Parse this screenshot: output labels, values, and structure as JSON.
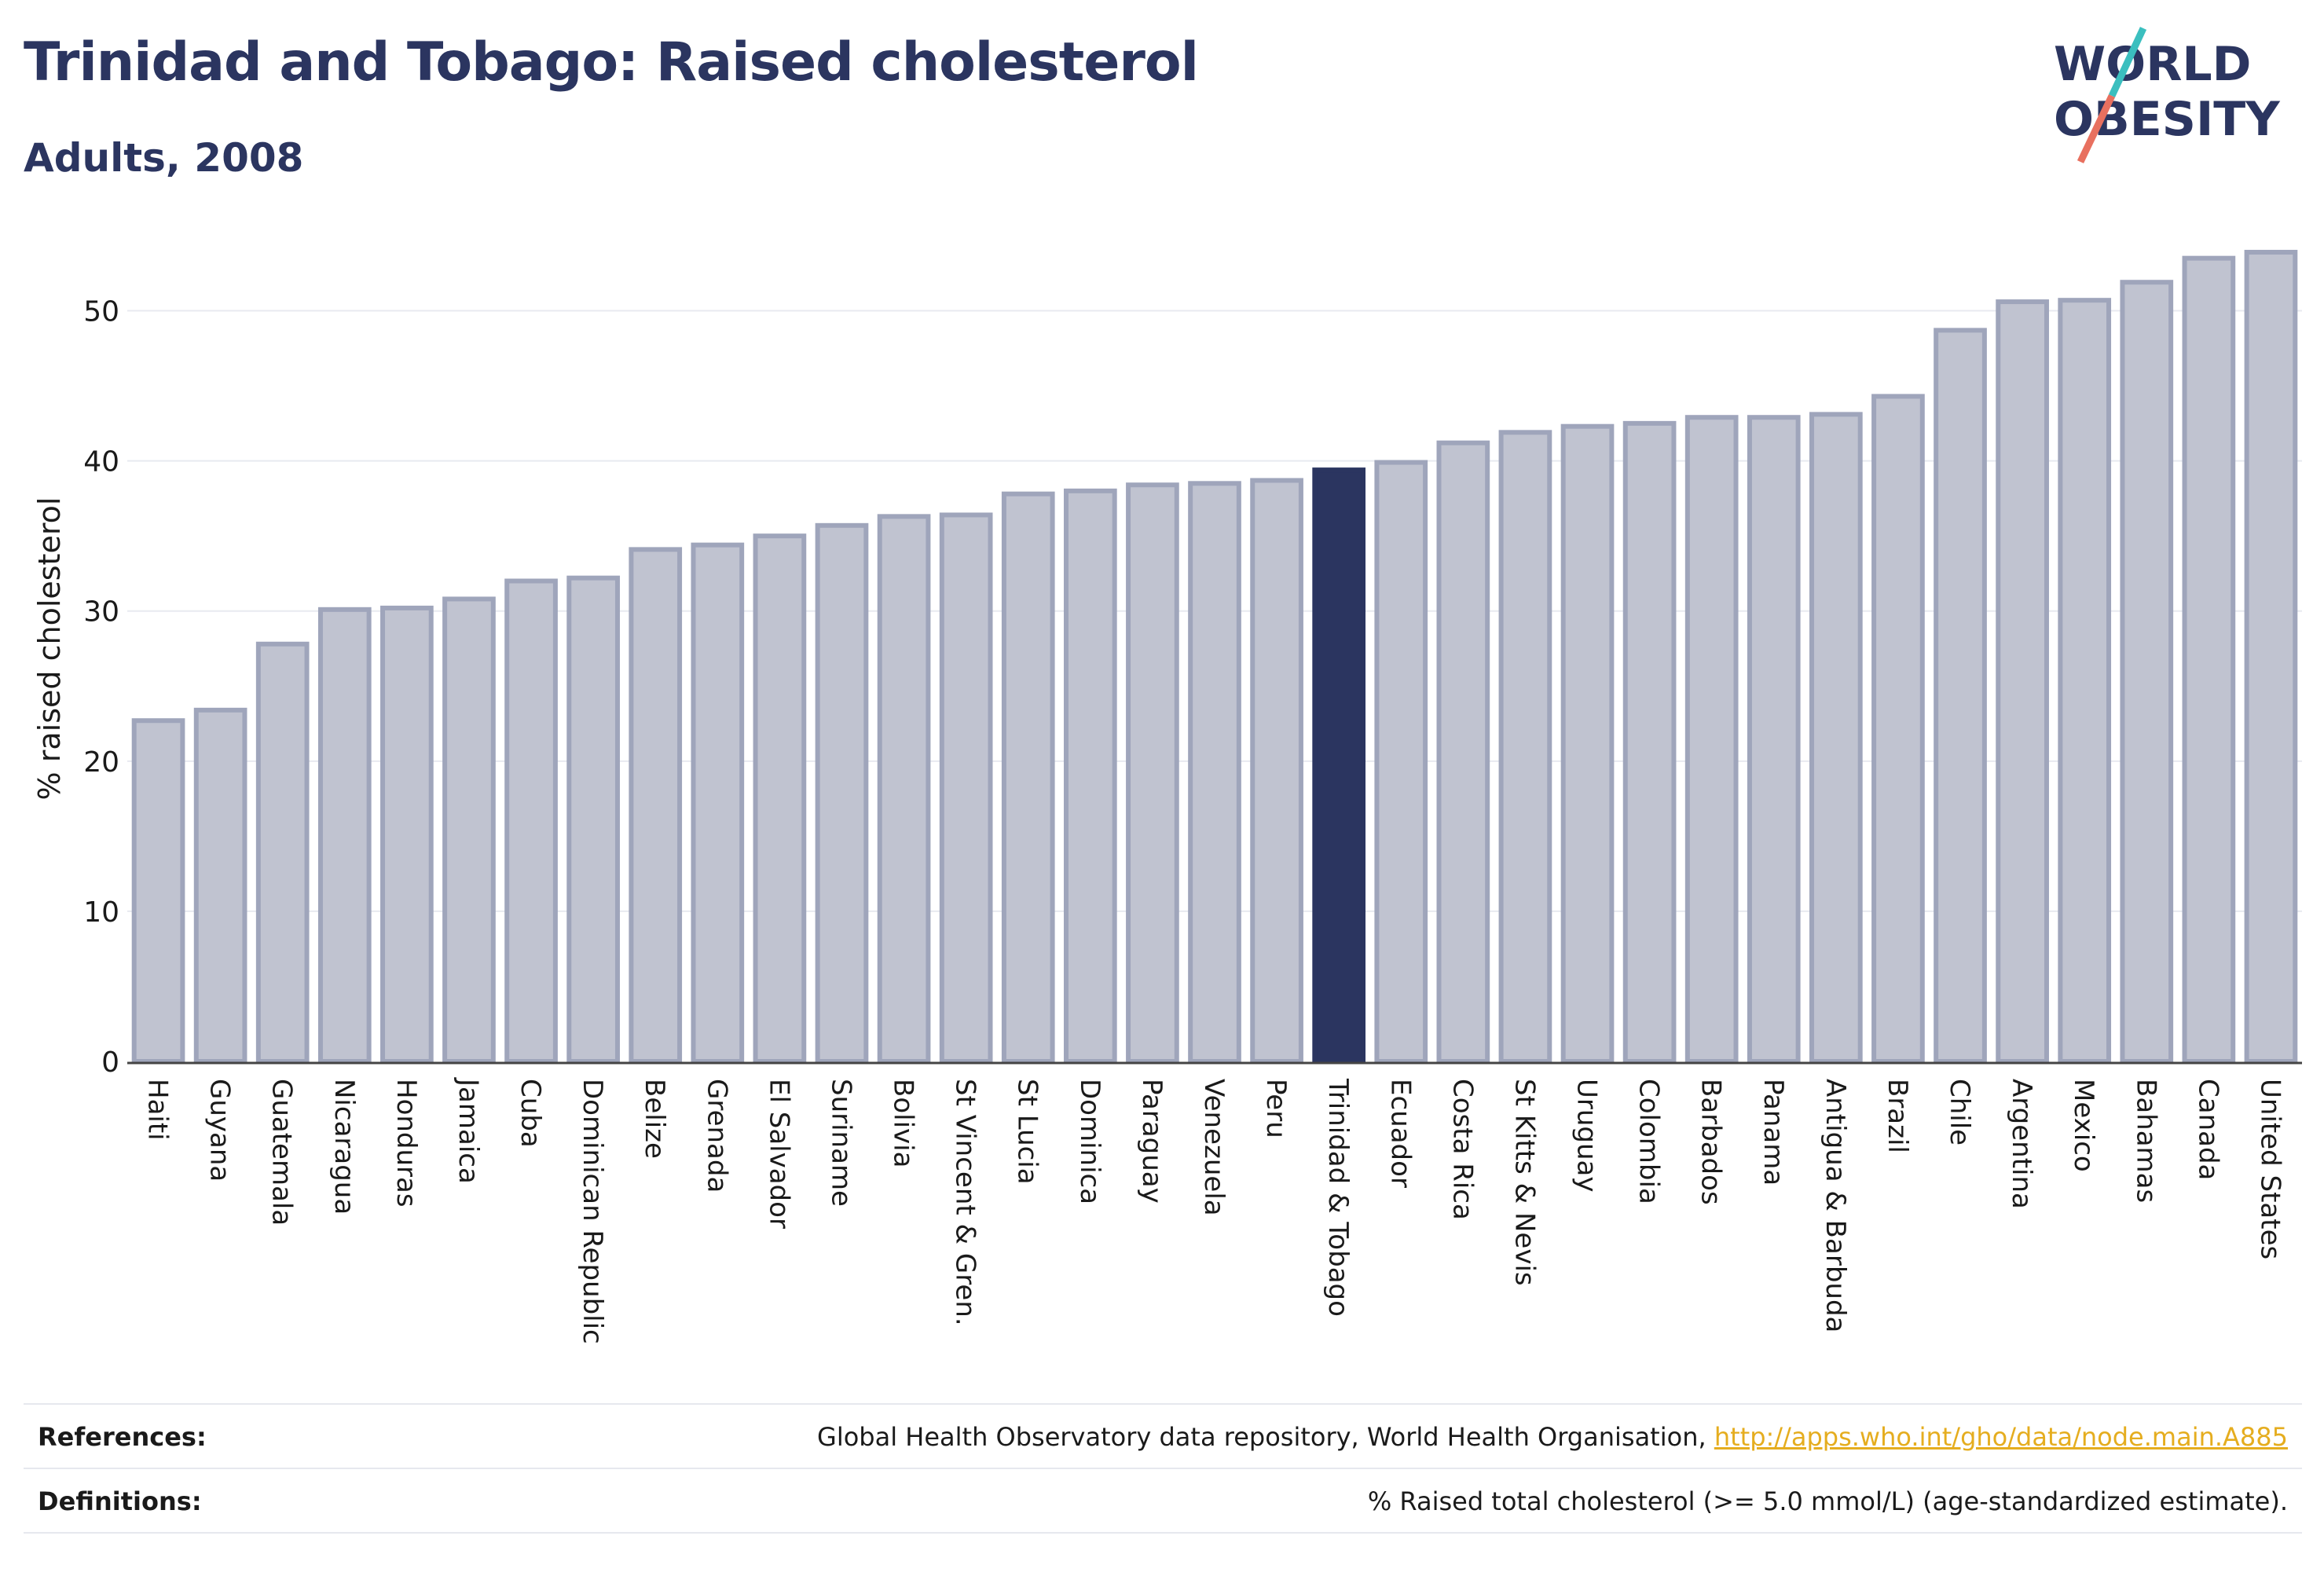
{
  "header": {
    "title": "Trinidad and Tobago: Raised cholesterol",
    "subtitle": "Adults, 2008"
  },
  "logo": {
    "line1": "WORLD",
    "line2": "OBESITY",
    "colors": {
      "text": "#2b3560",
      "slash_top": "#3bbfbf",
      "slash_bottom": "#e8705f"
    }
  },
  "colors": {
    "bar_fill": "#c0c3d0",
    "bar_stroke": "#9fa5bb",
    "highlight_fill": "#2b3560",
    "axis_text": "#1a1a1a",
    "gridline": "#e8eaf0"
  },
  "chart_data": {
    "type": "bar",
    "ylabel": "% raised cholesterol",
    "ylim": [
      0,
      55
    ],
    "yticks": [
      0,
      10,
      20,
      30,
      40,
      50
    ],
    "grid": true,
    "highlight": "Trinidad & Tobago",
    "categories": [
      "Haiti",
      "Guyana",
      "Guatemala",
      "Nicaragua",
      "Honduras",
      "Jamaica",
      "Cuba",
      "Dominican Republic",
      "Belize",
      "Grenada",
      "El Salvador",
      "Suriname",
      "Bolivia",
      "St Vincent & Gren.",
      "St Lucia",
      "Dominica",
      "Paraguay",
      "Venezuela",
      "Peru",
      "Trinidad & Tobago",
      "Ecuador",
      "Costa Rica",
      "St Kitts & Nevis",
      "Uruguay",
      "Colombia",
      "Barbados",
      "Panama",
      "Antigua & Barbuda",
      "Brazil",
      "Chile",
      "Argentina",
      "Mexico",
      "Bahamas",
      "Canada",
      "United States"
    ],
    "values": [
      22.7,
      23.4,
      27.8,
      30.1,
      30.2,
      30.8,
      32.0,
      32.2,
      34.1,
      34.4,
      35.0,
      35.7,
      36.3,
      36.4,
      37.8,
      38.0,
      38.4,
      38.5,
      38.7,
      39.4,
      39.9,
      41.2,
      41.9,
      42.3,
      42.5,
      42.9,
      42.9,
      43.1,
      44.3,
      48.7,
      50.6,
      50.7,
      51.9,
      53.5,
      53.9
    ]
  },
  "footer": {
    "references_label": "References:",
    "references_text": "Global Health Observatory data repository, World Health Organisation, ",
    "references_link": "http://apps.who.int/gho/data/node.main.A885",
    "definitions_label": "Definitions:",
    "definitions_text": "% Raised total cholesterol (>= 5.0 mmol/L) (age-standardized estimate)."
  }
}
